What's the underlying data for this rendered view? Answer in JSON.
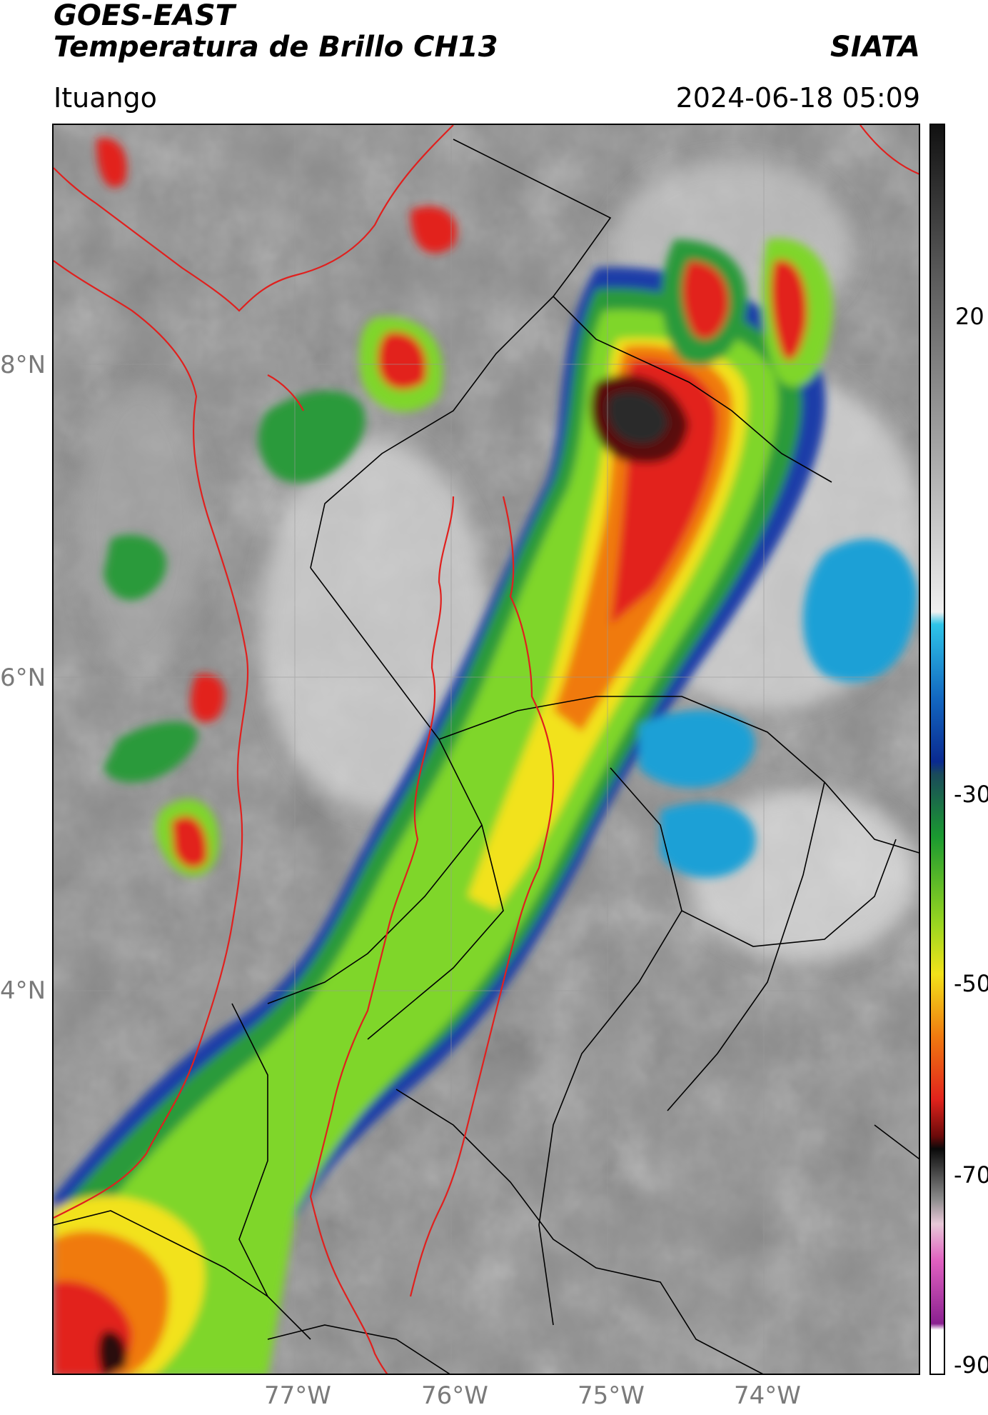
{
  "header": {
    "satellite": "GOES-EAST",
    "product": "Temperatura de Brillo CH13",
    "organization": "SIATA",
    "region": "Ituango",
    "datetime": "2024-06-18 05:09"
  },
  "map": {
    "lat_ticks": [
      "8°N",
      "6°N",
      "4°N"
    ],
    "lon_ticks": [
      "77°W",
      "76°W",
      "75°W",
      "74°W"
    ],
    "colors": {
      "country_border": "#e0201e",
      "admin_border": "#000000",
      "grid": "#9a9a9a"
    }
  },
  "colorbar": {
    "ticks": [
      "20",
      "-30",
      "-50",
      "-70",
      "-90"
    ],
    "unit_hint": "brightness temperature (°C)"
  }
}
